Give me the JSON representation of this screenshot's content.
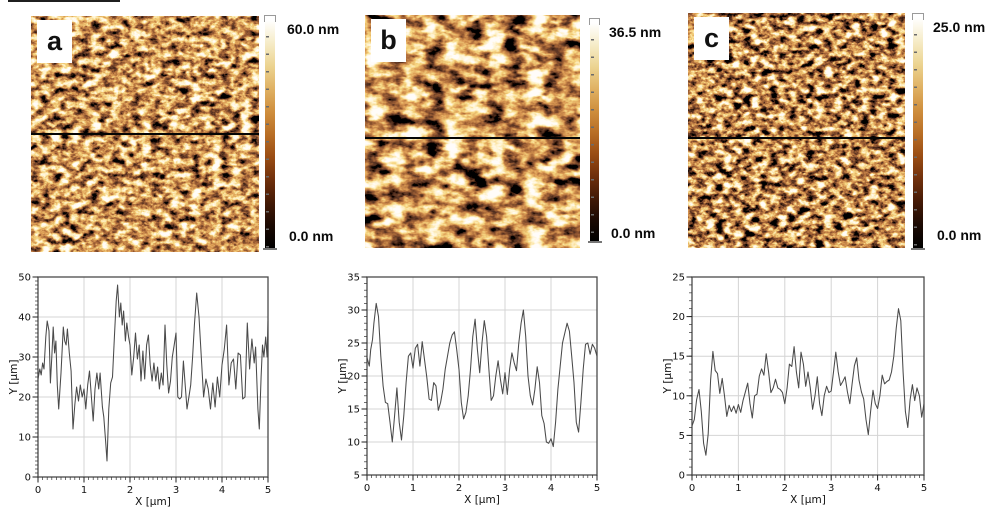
{
  "figure": {
    "panels": [
      {
        "label": "a",
        "scale_max": "60.0 nm",
        "scale_min": "0.0 nm"
      },
      {
        "label": "b",
        "scale_max": "36.5 nm",
        "scale_min": "0.0 nm"
      },
      {
        "label": "c",
        "scale_max": "25.0 nm",
        "scale_min": "0.0 nm"
      }
    ],
    "colorbar_gradient": [
      "#ffffff",
      "#f6ecc8",
      "#ecd491",
      "#e0b264",
      "#cf8f3e",
      "#b96f26",
      "#9a4d14",
      "#70300c",
      "#441a06",
      "#1c0a03",
      "#000000"
    ],
    "colorbar_tick_color": "#6b6b6b",
    "scanline_color": "#050505"
  },
  "chart_data": [
    {
      "type": "line",
      "title": "",
      "xlabel": "X [μm]",
      "ylabel": "Y [μm]",
      "xlim": [
        0,
        5
      ],
      "ylim": [
        0,
        50
      ],
      "xticks": [
        0,
        1,
        2,
        3,
        4,
        5
      ],
      "yticks": [
        0,
        10,
        20,
        30,
        40,
        50
      ],
      "x_minor_step": 0.1,
      "y_minor_step": 1,
      "grid": true,
      "legend": null,
      "line_color": "#4a4a4a",
      "grid_color": "#d4d4d4",
      "points": [
        [
          0,
          24.5
        ],
        [
          0.04,
          27
        ],
        [
          0.07,
          25.5
        ],
        [
          0.1,
          28.5
        ],
        [
          0.13,
          27
        ],
        [
          0.17,
          35
        ],
        [
          0.2,
          39
        ],
        [
          0.24,
          36.5
        ],
        [
          0.27,
          23.5
        ],
        [
          0.3,
          30
        ],
        [
          0.33,
          37.5
        ],
        [
          0.36,
          31
        ],
        [
          0.39,
          34
        ],
        [
          0.42,
          23
        ],
        [
          0.45,
          17
        ],
        [
          0.5,
          26
        ],
        [
          0.55,
          37.5
        ],
        [
          0.58,
          34
        ],
        [
          0.61,
          33
        ],
        [
          0.64,
          37
        ],
        [
          0.68,
          31
        ],
        [
          0.72,
          26.5
        ],
        [
          0.76,
          12
        ],
        [
          0.8,
          18
        ],
        [
          0.84,
          22.5
        ],
        [
          0.88,
          19
        ],
        [
          0.92,
          23
        ],
        [
          0.96,
          20
        ],
        [
          1,
          22
        ],
        [
          1.04,
          17
        ],
        [
          1.08,
          23
        ],
        [
          1.12,
          26.5
        ],
        [
          1.16,
          20
        ],
        [
          1.2,
          14
        ],
        [
          1.24,
          22
        ],
        [
          1.28,
          26
        ],
        [
          1.32,
          22
        ],
        [
          1.35,
          26
        ],
        [
          1.4,
          17.5
        ],
        [
          1.43,
          15
        ],
        [
          1.47,
          9
        ],
        [
          1.5,
          4
        ],
        [
          1.54,
          17
        ],
        [
          1.58,
          23.5
        ],
        [
          1.62,
          25
        ],
        [
          1.66,
          35
        ],
        [
          1.7,
          44
        ],
        [
          1.73,
          48
        ],
        [
          1.77,
          40
        ],
        [
          1.8,
          43.5
        ],
        [
          1.83,
          38
        ],
        [
          1.86,
          41.5
        ],
        [
          1.9,
          34
        ],
        [
          1.93,
          38.5
        ],
        [
          1.97,
          35
        ],
        [
          2,
          33
        ],
        [
          2.04,
          25.5
        ],
        [
          2.08,
          30
        ],
        [
          2.12,
          36
        ],
        [
          2.16,
          29.5
        ],
        [
          2.2,
          33
        ],
        [
          2.24,
          24
        ],
        [
          2.28,
          31.5
        ],
        [
          2.32,
          24.5
        ],
        [
          2.36,
          33
        ],
        [
          2.4,
          35.5
        ],
        [
          2.44,
          28
        ],
        [
          2.48,
          24
        ],
        [
          2.52,
          28.5
        ],
        [
          2.56,
          24
        ],
        [
          2.6,
          27.5
        ],
        [
          2.64,
          22
        ],
        [
          2.68,
          26
        ],
        [
          2.72,
          23
        ],
        [
          2.76,
          38
        ],
        [
          2.8,
          28
        ],
        [
          2.84,
          21
        ],
        [
          2.88,
          24
        ],
        [
          2.92,
          30
        ],
        [
          2.96,
          33
        ],
        [
          3,
          36
        ],
        [
          3.04,
          20
        ],
        [
          3.08,
          19.5
        ],
        [
          3.12,
          20
        ],
        [
          3.16,
          29
        ],
        [
          3.2,
          23
        ],
        [
          3.24,
          17
        ],
        [
          3.28,
          20
        ],
        [
          3.32,
          23
        ],
        [
          3.36,
          30
        ],
        [
          3.4,
          38
        ],
        [
          3.45,
          46
        ],
        [
          3.5,
          40
        ],
        [
          3.55,
          30
        ],
        [
          3.6,
          20
        ],
        [
          3.65,
          24.5
        ],
        [
          3.7,
          22
        ],
        [
          3.75,
          17
        ],
        [
          3.8,
          23.5
        ],
        [
          3.85,
          17.5
        ],
        [
          3.9,
          25
        ],
        [
          3.95,
          20
        ],
        [
          4,
          28
        ],
        [
          4.05,
          32
        ],
        [
          4.1,
          38
        ],
        [
          4.15,
          23
        ],
        [
          4.2,
          28.5
        ],
        [
          4.25,
          29.5
        ],
        [
          4.3,
          22
        ],
        [
          4.35,
          31
        ],
        [
          4.4,
          30.5
        ],
        [
          4.45,
          19.5
        ],
        [
          4.5,
          20
        ],
        [
          4.55,
          38.5
        ],
        [
          4.6,
          27
        ],
        [
          4.65,
          34.5
        ],
        [
          4.7,
          28.5
        ],
        [
          4.73,
          32.5
        ],
        [
          4.78,
          17
        ],
        [
          4.81,
          12
        ],
        [
          4.85,
          25
        ],
        [
          4.88,
          33
        ],
        [
          4.91,
          30
        ],
        [
          4.95,
          35
        ],
        [
          4.98,
          30
        ],
        [
          5,
          39
        ]
      ]
    },
    {
      "type": "line",
      "title": "",
      "xlabel": "X [μm]",
      "ylabel": "Y [μm]",
      "xlim": [
        0,
        5
      ],
      "ylim": [
        5,
        35
      ],
      "xticks": [
        0,
        1,
        2,
        3,
        4,
        5
      ],
      "yticks": [
        5,
        10,
        15,
        20,
        25,
        30,
        35
      ],
      "x_minor_step": 0.1,
      "y_minor_step": 1,
      "grid": true,
      "legend": null,
      "line_color": "#4a4a4a",
      "grid_color": "#d4d4d4",
      "points": [
        [
          0,
          22.8
        ],
        [
          0.05,
          21.5
        ],
        [
          0.08,
          24
        ],
        [
          0.12,
          25.5
        ],
        [
          0.15,
          28
        ],
        [
          0.2,
          31
        ],
        [
          0.25,
          29
        ],
        [
          0.3,
          23
        ],
        [
          0.35,
          18.5
        ],
        [
          0.4,
          16
        ],
        [
          0.45,
          15.8
        ],
        [
          0.5,
          13
        ],
        [
          0.55,
          10
        ],
        [
          0.6,
          14
        ],
        [
          0.65,
          18.2
        ],
        [
          0.7,
          13
        ],
        [
          0.75,
          10.3
        ],
        [
          0.8,
          14
        ],
        [
          0.85,
          19
        ],
        [
          0.9,
          23
        ],
        [
          0.95,
          23.5
        ],
        [
          1,
          21.2
        ],
        [
          1.05,
          24.2
        ],
        [
          1.1,
          24.8
        ],
        [
          1.15,
          21.5
        ],
        [
          1.2,
          25.2
        ],
        [
          1.25,
          22.5
        ],
        [
          1.3,
          19.8
        ],
        [
          1.35,
          16.5
        ],
        [
          1.4,
          16.3
        ],
        [
          1.45,
          19
        ],
        [
          1.5,
          18.5
        ],
        [
          1.55,
          14.8
        ],
        [
          1.6,
          16
        ],
        [
          1.65,
          18
        ],
        [
          1.7,
          21
        ],
        [
          1.75,
          23
        ],
        [
          1.8,
          25
        ],
        [
          1.85,
          26.2
        ],
        [
          1.9,
          26.7
        ],
        [
          1.95,
          24
        ],
        [
          2,
          21
        ],
        [
          2.05,
          16
        ],
        [
          2.1,
          13.5
        ],
        [
          2.15,
          14.5
        ],
        [
          2.2,
          17
        ],
        [
          2.25,
          21
        ],
        [
          2.3,
          26
        ],
        [
          2.35,
          28.6
        ],
        [
          2.4,
          24
        ],
        [
          2.45,
          20.5
        ],
        [
          2.5,
          25
        ],
        [
          2.55,
          28.4
        ],
        [
          2.6,
          26
        ],
        [
          2.65,
          21
        ],
        [
          2.7,
          16.3
        ],
        [
          2.75,
          17
        ],
        [
          2.8,
          20
        ],
        [
          2.85,
          22.3
        ],
        [
          2.9,
          19.5
        ],
        [
          2.95,
          17.3
        ],
        [
          3,
          20.5
        ],
        [
          3.05,
          17.2
        ],
        [
          3.1,
          21
        ],
        [
          3.15,
          23.5
        ],
        [
          3.2,
          22
        ],
        [
          3.25,
          20.8
        ],
        [
          3.3,
          25
        ],
        [
          3.35,
          28
        ],
        [
          3.4,
          30
        ],
        [
          3.45,
          26
        ],
        [
          3.5,
          20
        ],
        [
          3.55,
          17
        ],
        [
          3.6,
          15.6
        ],
        [
          3.65,
          18
        ],
        [
          3.7,
          21.4
        ],
        [
          3.75,
          19
        ],
        [
          3.8,
          14
        ],
        [
          3.85,
          12.8
        ],
        [
          3.9,
          10
        ],
        [
          3.95,
          9.8
        ],
        [
          4,
          10.5
        ],
        [
          4.05,
          9.3
        ],
        [
          4.1,
          13
        ],
        [
          4.15,
          18
        ],
        [
          4.2,
          21.5
        ],
        [
          4.25,
          25
        ],
        [
          4.3,
          26.5
        ],
        [
          4.35,
          28
        ],
        [
          4.4,
          26.8
        ],
        [
          4.45,
          23
        ],
        [
          4.5,
          19
        ],
        [
          4.55,
          13
        ],
        [
          4.6,
          11.5
        ],
        [
          4.65,
          16
        ],
        [
          4.7,
          21
        ],
        [
          4.75,
          24.8
        ],
        [
          4.8,
          25
        ],
        [
          4.85,
          23.3
        ],
        [
          4.9,
          24.8
        ],
        [
          4.95,
          24.2
        ],
        [
          5,
          23
        ]
      ]
    },
    {
      "type": "line",
      "title": "",
      "xlabel": "X [μm]",
      "ylabel": "Y [μm]",
      "xlim": [
        0,
        5
      ],
      "ylim": [
        0,
        25
      ],
      "xticks": [
        0,
        1,
        2,
        3,
        4,
        5
      ],
      "yticks": [
        0,
        5,
        10,
        15,
        20,
        25
      ],
      "x_minor_step": 0.1,
      "y_minor_step": 1,
      "grid": true,
      "legend": null,
      "line_color": "#4a4a4a",
      "grid_color": "#d4d4d4",
      "points": [
        [
          0,
          6.2
        ],
        [
          0.05,
          7
        ],
        [
          0.1,
          9.5
        ],
        [
          0.15,
          10.8
        ],
        [
          0.2,
          8
        ],
        [
          0.25,
          4
        ],
        [
          0.3,
          2.5
        ],
        [
          0.35,
          5.2
        ],
        [
          0.4,
          12
        ],
        [
          0.45,
          15.6
        ],
        [
          0.5,
          13.2
        ],
        [
          0.55,
          12.8
        ],
        [
          0.6,
          10.3
        ],
        [
          0.65,
          12.2
        ],
        [
          0.7,
          10
        ],
        [
          0.75,
          7.4
        ],
        [
          0.8,
          8.8
        ],
        [
          0.85,
          8
        ],
        [
          0.9,
          8.7
        ],
        [
          0.95,
          7.8
        ],
        [
          1,
          8.9
        ],
        [
          1.05,
          7.9
        ],
        [
          1.1,
          9.4
        ],
        [
          1.15,
          10.5
        ],
        [
          1.2,
          11.6
        ],
        [
          1.25,
          9
        ],
        [
          1.3,
          7.2
        ],
        [
          1.35,
          10
        ],
        [
          1.4,
          10.2
        ],
        [
          1.45,
          12.5
        ],
        [
          1.5,
          13.4
        ],
        [
          1.55,
          12.6
        ],
        [
          1.6,
          15.3
        ],
        [
          1.65,
          13
        ],
        [
          1.7,
          10.4
        ],
        [
          1.75,
          11
        ],
        [
          1.8,
          12.1
        ],
        [
          1.85,
          11
        ],
        [
          1.9,
          10.8
        ],
        [
          1.95,
          10.4
        ],
        [
          2,
          9
        ],
        [
          2.05,
          11
        ],
        [
          2.1,
          14
        ],
        [
          2.15,
          13.7
        ],
        [
          2.2,
          16.2
        ],
        [
          2.25,
          13
        ],
        [
          2.3,
          11
        ],
        [
          2.35,
          15.5
        ],
        [
          2.4,
          14
        ],
        [
          2.45,
          11.2
        ],
        [
          2.5,
          13
        ],
        [
          2.55,
          11
        ],
        [
          2.6,
          8.3
        ],
        [
          2.65,
          10
        ],
        [
          2.7,
          12.4
        ],
        [
          2.75,
          9
        ],
        [
          2.8,
          7.5
        ],
        [
          2.85,
          10
        ],
        [
          2.9,
          11.2
        ],
        [
          2.95,
          10.4
        ],
        [
          3,
          10.6
        ],
        [
          3.05,
          13
        ],
        [
          3.1,
          15.5
        ],
        [
          3.15,
          13
        ],
        [
          3.2,
          11.3
        ],
        [
          3.25,
          11.8
        ],
        [
          3.3,
          12.4
        ],
        [
          3.35,
          10.5
        ],
        [
          3.4,
          9
        ],
        [
          3.45,
          11.5
        ],
        [
          3.5,
          13.8
        ],
        [
          3.55,
          14.8
        ],
        [
          3.6,
          12
        ],
        [
          3.65,
          10.5
        ],
        [
          3.7,
          9.6
        ],
        [
          3.75,
          7
        ],
        [
          3.8,
          5.1
        ],
        [
          3.85,
          8
        ],
        [
          3.9,
          10.7
        ],
        [
          3.95,
          9
        ],
        [
          4,
          8.4
        ],
        [
          4.05,
          10
        ],
        [
          4.1,
          12.6
        ],
        [
          4.15,
          11.5
        ],
        [
          4.2,
          11.8
        ],
        [
          4.25,
          12
        ],
        [
          4.3,
          13
        ],
        [
          4.35,
          15
        ],
        [
          4.4,
          18.5
        ],
        [
          4.45,
          21
        ],
        [
          4.5,
          19.5
        ],
        [
          4.55,
          13
        ],
        [
          4.6,
          8
        ],
        [
          4.65,
          6
        ],
        [
          4.7,
          9.5
        ],
        [
          4.75,
          11.4
        ],
        [
          4.8,
          9.4
        ],
        [
          4.85,
          11
        ],
        [
          4.9,
          10
        ],
        [
          4.95,
          7.3
        ],
        [
          5,
          9
        ]
      ]
    }
  ]
}
